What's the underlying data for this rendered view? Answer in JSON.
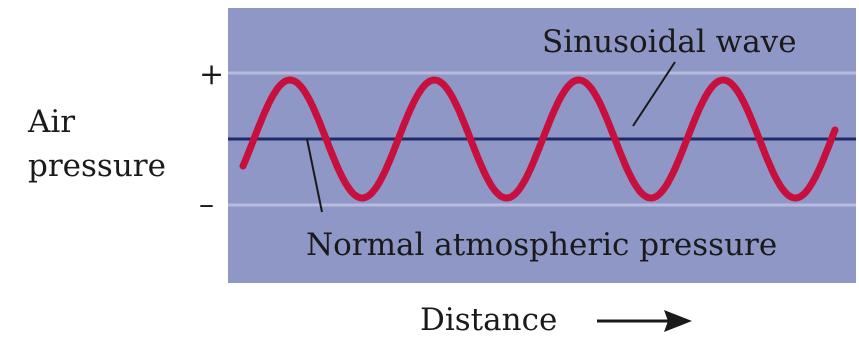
{
  "diagram": {
    "labels": {
      "wave": "Sinusoidal wave",
      "baseline": "Normal atmospheric pressure",
      "y_axis_line1": "Air",
      "y_axis_line2": "pressure",
      "plus": "+",
      "minus": "–",
      "x_axis": "Distance"
    },
    "wave": {
      "cycles": 4,
      "shape": "sine"
    },
    "colors": {
      "panel": "#8f97c6",
      "panel_stripe": "#b7bcde",
      "wave": "#c8103e",
      "baseline": "#1f2a6b",
      "arrow": "#1a1a1a"
    }
  }
}
